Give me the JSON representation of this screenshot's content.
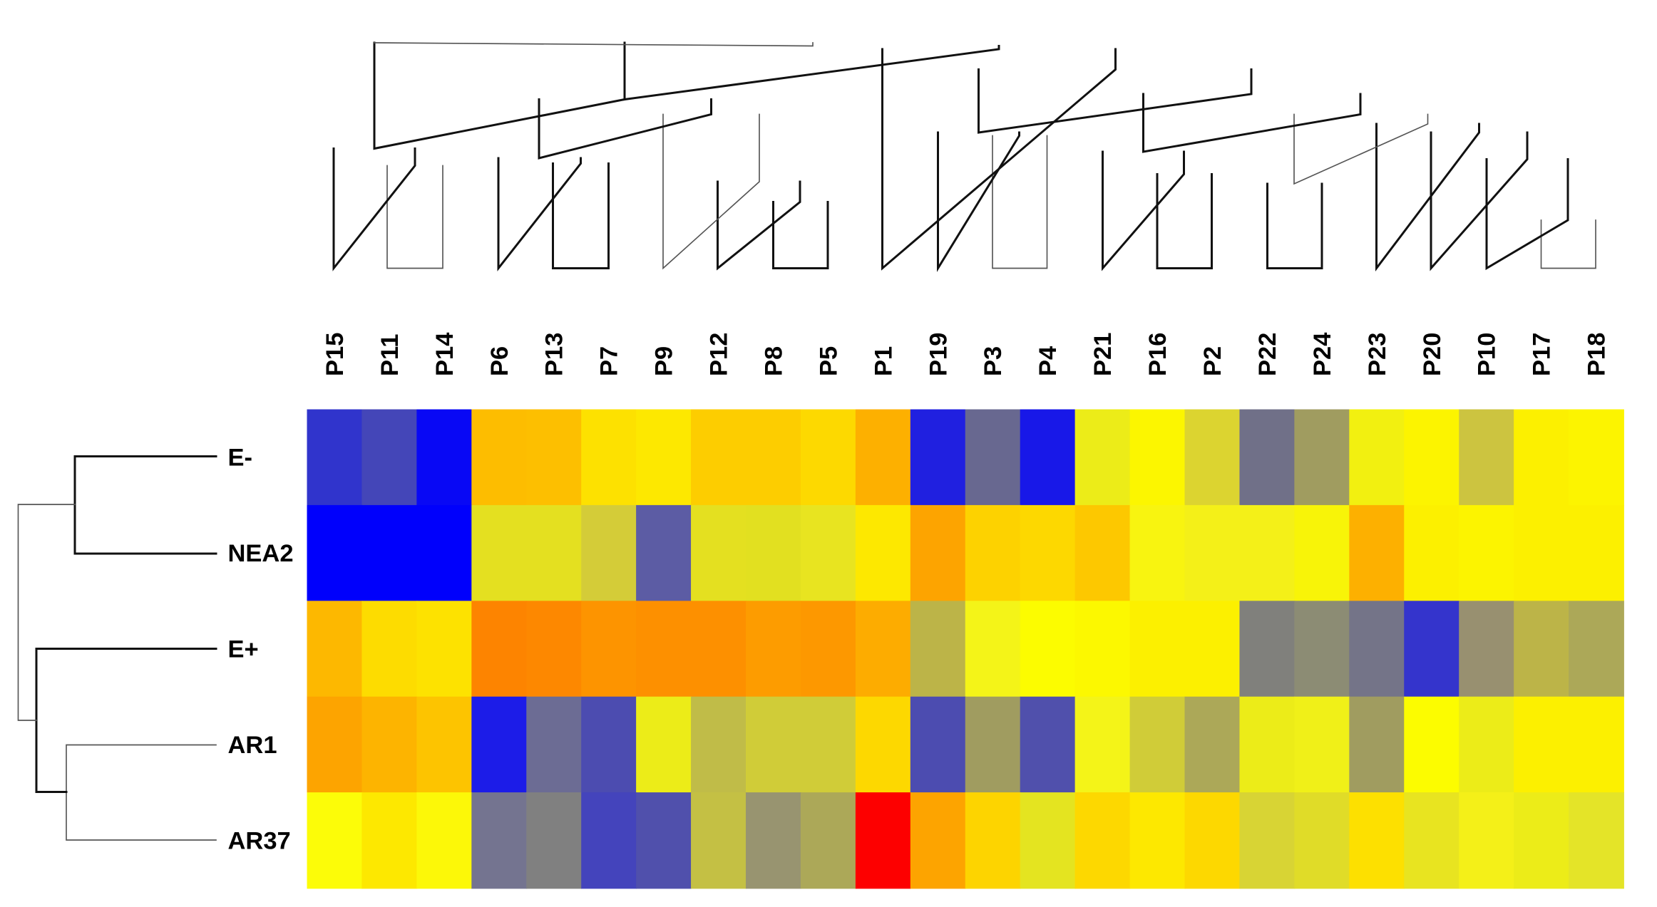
{
  "chart_data": {
    "type": "heatmap",
    "title": "",
    "columns": [
      "P15",
      "P11",
      "P14",
      "P6",
      "P13",
      "P7",
      "P9",
      "P12",
      "P8",
      "P5",
      "P1",
      "P19",
      "P3",
      "P4",
      "P21",
      "P16",
      "P2",
      "P22",
      "P24",
      "P23",
      "P20",
      "P10",
      "P17",
      "P18"
    ],
    "rows": [
      "E-",
      "NEA2",
      "E+",
      "AR1",
      "AR37"
    ],
    "cell_colors": [
      [
        "#3034cc",
        "#4446b8",
        "#0808f5",
        "#fdbd00",
        "#fdbf00",
        "#fde100",
        "#fde800",
        "#fdcd00",
        "#fdcd00",
        "#fdd900",
        "#fdb000",
        "#2020e0",
        "#686890",
        "#1818e8",
        "#ecec18",
        "#fcf600",
        "#dcd430",
        "#707088",
        "#a09c60",
        "#f2f010",
        "#fcf400",
        "#ccc440",
        "#fcf000",
        "#fcf400"
      ],
      [
        "#0000fc",
        "#0000fc",
        "#0000fc",
        "#e4e020",
        "#e4e020",
        "#d4cc38",
        "#5c5ca4",
        "#e4e020",
        "#e2e020",
        "#e8e420",
        "#fde800",
        "#fda400",
        "#fdd200",
        "#fdd800",
        "#fdc800",
        "#f8f410",
        "#f4f018",
        "#f4f018",
        "#f8f408",
        "#fdb000",
        "#fcf000",
        "#fcf400",
        "#fcf000",
        "#fcf000"
      ],
      [
        "#fdb800",
        "#fddc00",
        "#fde200",
        "#fd8400",
        "#fd8800",
        "#fd9400",
        "#fd9000",
        "#fd9000",
        "#fd9c00",
        "#fd9800",
        "#fdac00",
        "#bcb448",
        "#f4f418",
        "#fcfc00",
        "#fcf800",
        "#fcf000",
        "#fcf000",
        "#80807c",
        "#8c8c74",
        "#747488",
        "#3434cc",
        "#989070",
        "#bcb448",
        "#aca858"
      ],
      [
        "#fda400",
        "#fdb400",
        "#fdc400",
        "#1c1ce8",
        "#6c6c94",
        "#4c4cb0",
        "#ecec18",
        "#c0bc48",
        "#d0cc38",
        "#d0cc38",
        "#fdd800",
        "#4c4cb0",
        "#a09c60",
        "#5050ac",
        "#f4f418",
        "#d0cc38",
        "#aca858",
        "#ecec18",
        "#f0f018",
        "#a09c60",
        "#fcfc00",
        "#ecec18",
        "#fcf000",
        "#fcf000"
      ],
      [
        "#fcfc08",
        "#fde800",
        "#fcf808",
        "#747490",
        "#808080",
        "#4444bc",
        "#5050ac",
        "#c4c044",
        "#989470",
        "#aca858",
        "#fd0000",
        "#fda400",
        "#fdd400",
        "#e4e420",
        "#fdd800",
        "#fde800",
        "#fdd800",
        "#d8d434",
        "#e0dc28",
        "#fde000",
        "#e8e420",
        "#f4f018",
        "#ecec18",
        "#e4e428"
      ]
    ],
    "color_scale": [
      "#0000ff",
      "#808080",
      "#ffff00",
      "#ff8000",
      "#ff0000"
    ],
    "column_dendrogram": [
      {
        "x": [
          362,
          362,
          414,
          414
        ],
        "y": [
          155,
          251,
          251,
          155
        ],
        "strong": false
      },
      {
        "x": [
          312,
          312,
          388,
          388
        ],
        "y": [
          139,
          251,
          155,
          139
        ],
        "strong": true
      },
      {
        "x": [
          517,
          517,
          569,
          569
        ],
        "y": [
          153,
          251,
          251,
          153
        ],
        "strong": true
      },
      {
        "x": [
          466,
          466,
          543,
          543
        ],
        "y": [
          148,
          251,
          153,
          148
        ],
        "strong": true
      },
      {
        "x": [
          723,
          723,
          774,
          774
        ],
        "y": [
          189,
          251,
          251,
          189
        ],
        "strong": true
      },
      {
        "x": [
          671,
          671,
          748,
          748
        ],
        "y": [
          170,
          251,
          189,
          170
        ],
        "strong": true
      },
      {
        "x": [
          620,
          620,
          710,
          710
        ],
        "y": [
          107,
          251,
          170,
          107
        ],
        "strong": false
      },
      {
        "x": [
          504,
          504,
          665,
          665
        ],
        "y": [
          93,
          148,
          107,
          93
        ],
        "strong": true
      },
      {
        "x": [
          350,
          350,
          584,
          584
        ],
        "y": [
          40,
          139,
          93,
          40
        ],
        "strong": true
      },
      {
        "x": [
          928,
          928,
          979,
          979
        ],
        "y": [
          127,
          251,
          251,
          127
        ],
        "strong": false
      },
      {
        "x": [
          877,
          877,
          953,
          953
        ],
        "y": [
          124,
          251,
          127,
          124
        ],
        "strong": true
      },
      {
        "x": [
          1082,
          1082,
          1133,
          1133
        ],
        "y": [
          163,
          251,
          251,
          163
        ],
        "strong": true
      },
      {
        "x": [
          1031,
          1031,
          1107,
          1107
        ],
        "y": [
          142,
          251,
          163,
          142
        ],
        "strong": true
      },
      {
        "x": [
          1185,
          1185,
          1236,
          1236
        ],
        "y": [
          172,
          251,
          251,
          172
        ],
        "strong": true
      },
      {
        "x": [
          1441,
          1441,
          1492,
          1492
        ],
        "y": [
          206,
          251,
          251,
          206
        ],
        "strong": false
      },
      {
        "x": [
          1390,
          1390,
          1466,
          1466
        ],
        "y": [
          149,
          251,
          206,
          149
        ],
        "strong": true
      },
      {
        "x": [
          1338,
          1338,
          1428,
          1428
        ],
        "y": [
          124,
          251,
          149,
          124
        ],
        "strong": true
      },
      {
        "x": [
          1287,
          1287,
          1383,
          1383
        ],
        "y": [
          116,
          251,
          124,
          116
        ],
        "strong": true
      },
      {
        "x": [
          1210,
          1210,
          1335,
          1335
        ],
        "y": [
          107,
          172,
          116,
          107
        ],
        "strong": false
      },
      {
        "x": [
          1069,
          1069,
          1272,
          1272
        ],
        "y": [
          88,
          142,
          107,
          88
        ],
        "strong": true
      },
      {
        "x": [
          915,
          915,
          1170,
          1170
        ],
        "y": [
          65,
          124,
          88,
          65
        ],
        "strong": true
      },
      {
        "x": [
          825,
          825,
          1043,
          1043
        ],
        "y": [
          46,
          251,
          65,
          46
        ],
        "strong": true
      },
      {
        "x": [
          584,
          584,
          934,
          934
        ],
        "y": [
          43,
          93,
          46,
          43
        ],
        "strong": true
      },
      {
        "x": [
          350,
          350,
          760,
          760
        ],
        "y": [
          40,
          40,
          43,
          40
        ],
        "strong": false
      }
    ],
    "row_dendrogram": [
      {
        "x": [
          202,
          70,
          70,
          202
        ],
        "y": [
          427,
          427,
          518,
          518
        ],
        "strong": true
      },
      {
        "x": [
          202,
          62,
          62,
          202
        ],
        "y": [
          697,
          697,
          786,
          786
        ],
        "strong": false
      },
      {
        "x": [
          202,
          34,
          34,
          62
        ],
        "y": [
          607,
          607,
          741,
          741
        ],
        "strong": true
      },
      {
        "x": [
          70,
          17,
          17,
          34
        ],
        "y": [
          472,
          472,
          674,
          674
        ],
        "strong": false
      }
    ]
  }
}
